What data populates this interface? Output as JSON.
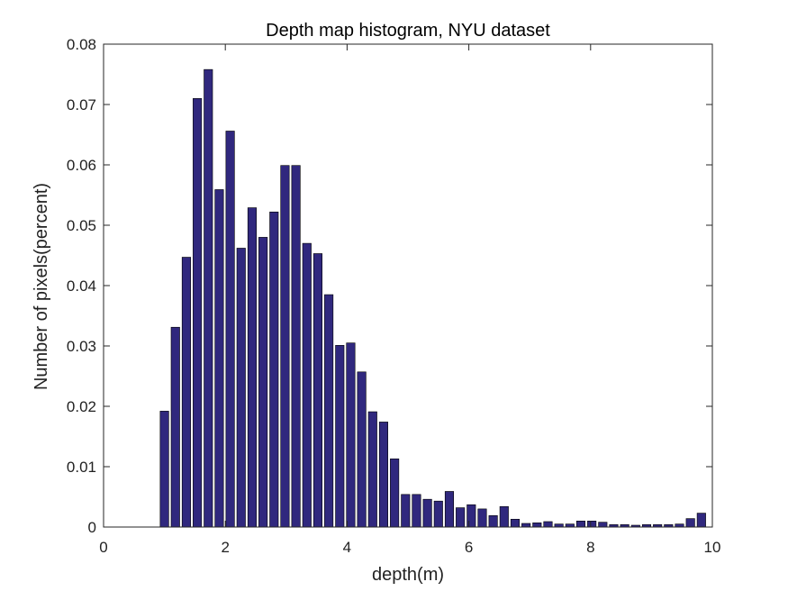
{
  "chart_data": {
    "type": "bar",
    "title": "Depth map histogram, NYU dataset",
    "xlabel": "depth(m)",
    "ylabel": "Number of pixels(percent)",
    "xlim": [
      0,
      10
    ],
    "ylim": [
      0,
      0.08
    ],
    "xticks": [
      0,
      2,
      4,
      6,
      8,
      10
    ],
    "xtick_labels": [
      "0",
      "2",
      "4",
      "6",
      "8",
      "10"
    ],
    "yticks": [
      0,
      0.01,
      0.02,
      0.03,
      0.04,
      0.05,
      0.06,
      0.07,
      0.08
    ],
    "ytick_labels": [
      "0",
      "0.01",
      "0.02",
      "0.03",
      "0.04",
      "0.05",
      "0.06",
      "0.07",
      "0.08"
    ],
    "grid": false,
    "bar_color": "#30287e",
    "bar_edge_color": "#000000",
    "x": [
      1.0,
      1.18,
      1.36,
      1.54,
      1.72,
      1.9,
      2.08,
      2.26,
      2.44,
      2.62,
      2.8,
      2.98,
      3.16,
      3.34,
      3.52,
      3.7,
      3.88,
      4.06,
      4.24,
      4.42,
      4.6,
      4.78,
      4.96,
      5.14,
      5.32,
      5.5,
      5.68,
      5.86,
      6.04,
      6.22,
      6.4,
      6.58,
      6.76,
      6.94,
      7.12,
      7.3,
      7.48,
      7.66,
      7.84,
      8.02,
      8.2,
      8.38,
      8.56,
      8.74,
      8.92,
      9.1,
      9.28,
      9.46,
      9.64,
      9.82
    ],
    "values": [
      0.0192,
      0.0331,
      0.0447,
      0.071,
      0.0758,
      0.0559,
      0.0656,
      0.0462,
      0.0529,
      0.048,
      0.0522,
      0.0599,
      0.0599,
      0.047,
      0.0453,
      0.0385,
      0.0301,
      0.0305,
      0.0257,
      0.0191,
      0.0174,
      0.0113,
      0.0054,
      0.0054,
      0.0046,
      0.0043,
      0.0059,
      0.0032,
      0.0037,
      0.003,
      0.0019,
      0.0034,
      0.0013,
      0.0006,
      0.0007,
      0.0009,
      0.0005,
      0.0005,
      0.001,
      0.001,
      0.0008,
      0.0004,
      0.0004,
      0.0003,
      0.0004,
      0.0004,
      0.0004,
      0.0005,
      0.0014,
      0.0023
    ]
  }
}
